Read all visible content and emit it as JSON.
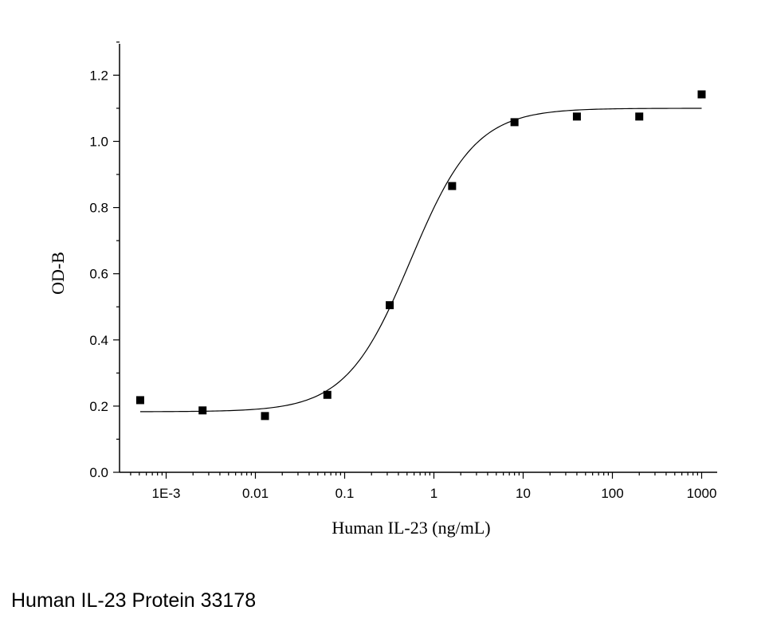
{
  "caption": "Human IL-23 Protein 33178",
  "chart_data": {
    "type": "scatter",
    "title": "",
    "xlabel": "Human IL-23 (ng/mL)",
    "ylabel": "OD-B",
    "xscale": "log",
    "xlim": [
      0.0003,
      1200
    ],
    "ylim": [
      0.0,
      1.3
    ],
    "xticks": [
      {
        "value": 0.001,
        "label": "1E-3"
      },
      {
        "value": 0.01,
        "label": "0.01"
      },
      {
        "value": 0.1,
        "label": "0.1"
      },
      {
        "value": 1,
        "label": "1"
      },
      {
        "value": 10,
        "label": "10"
      },
      {
        "value": 100,
        "label": "100"
      },
      {
        "value": 1000,
        "label": "1000"
      }
    ],
    "yticks": [
      {
        "value": 0.0,
        "label": "0.0"
      },
      {
        "value": 0.2,
        "label": "0.2"
      },
      {
        "value": 0.4,
        "label": "0.4"
      },
      {
        "value": 0.6,
        "label": "0.6"
      },
      {
        "value": 0.8,
        "label": "0.8"
      },
      {
        "value": 1.0,
        "label": "1.0"
      },
      {
        "value": 1.2,
        "label": "1.2"
      }
    ],
    "grid": false,
    "legend": "none",
    "series": [
      {
        "marker": "square",
        "color": "#000000",
        "points": [
          {
            "x": 0.000512,
            "y": 0.218
          },
          {
            "x": 0.00256,
            "y": 0.187
          },
          {
            "x": 0.0128,
            "y": 0.17
          },
          {
            "x": 0.064,
            "y": 0.234
          },
          {
            "x": 0.32,
            "y": 0.505
          },
          {
            "x": 1.6,
            "y": 0.865
          },
          {
            "x": 8,
            "y": 1.058
          },
          {
            "x": 40,
            "y": 1.075
          },
          {
            "x": 200,
            "y": 1.075
          },
          {
            "x": 1000,
            "y": 1.142
          }
        ]
      }
    ],
    "fit": {
      "type": "four-parameter-logistic",
      "color": "#000000",
      "bottom": 0.183,
      "top": 1.1,
      "ec50": 0.55,
      "hill": 1.2,
      "x_range": [
        0.000512,
        1000
      ]
    }
  }
}
